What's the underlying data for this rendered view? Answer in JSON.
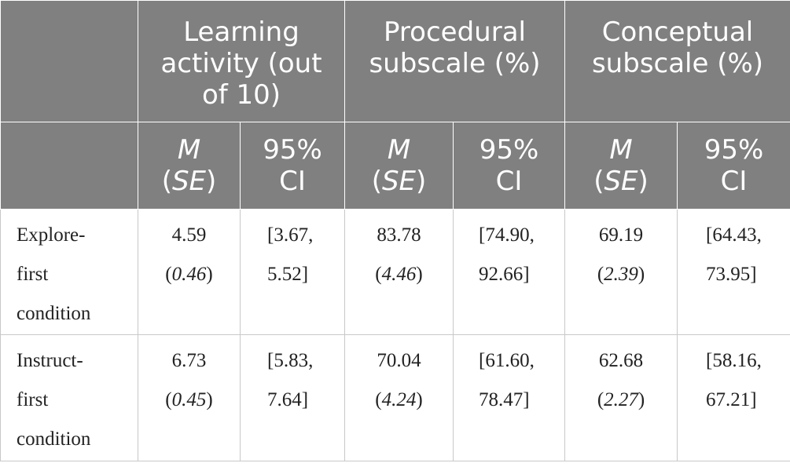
{
  "header_groups": [
    {
      "label_lines": [
        "Learning",
        "activity (out",
        "of 10)"
      ]
    },
    {
      "label_lines": [
        "Procedural",
        "subscale (%)"
      ]
    },
    {
      "label_lines": [
        "Conceptual",
        "subscale (%)"
      ]
    }
  ],
  "subheaders": {
    "m_line1": "M",
    "m_line2": "SE",
    "ci_line1": "95%",
    "ci_line2": "CI"
  },
  "rows": [
    {
      "label_lines": [
        "Explore-",
        "first",
        "condition"
      ],
      "cells": [
        {
          "m": "4.59",
          "se": "0.46",
          "ci_lines": [
            "[3.67,",
            "5.52]"
          ]
        },
        {
          "m": "83.78",
          "se": "4.46",
          "ci_lines": [
            "[74.90,",
            "92.66]"
          ]
        },
        {
          "m": "69.19",
          "se": "2.39",
          "ci_lines": [
            "[64.43,",
            "73.95]"
          ]
        }
      ]
    },
    {
      "label_lines": [
        "Instruct-",
        "first",
        "condition"
      ],
      "cells": [
        {
          "m": "6.73",
          "se": "0.45",
          "ci_lines": [
            "[5.83,",
            "7.64]"
          ]
        },
        {
          "m": "70.04",
          "se": "4.24",
          "ci_lines": [
            "[61.60,",
            "78.47]"
          ]
        },
        {
          "m": "62.68",
          "se": "2.27",
          "ci_lines": [
            "[58.16,",
            "67.21]"
          ]
        }
      ]
    }
  ]
}
